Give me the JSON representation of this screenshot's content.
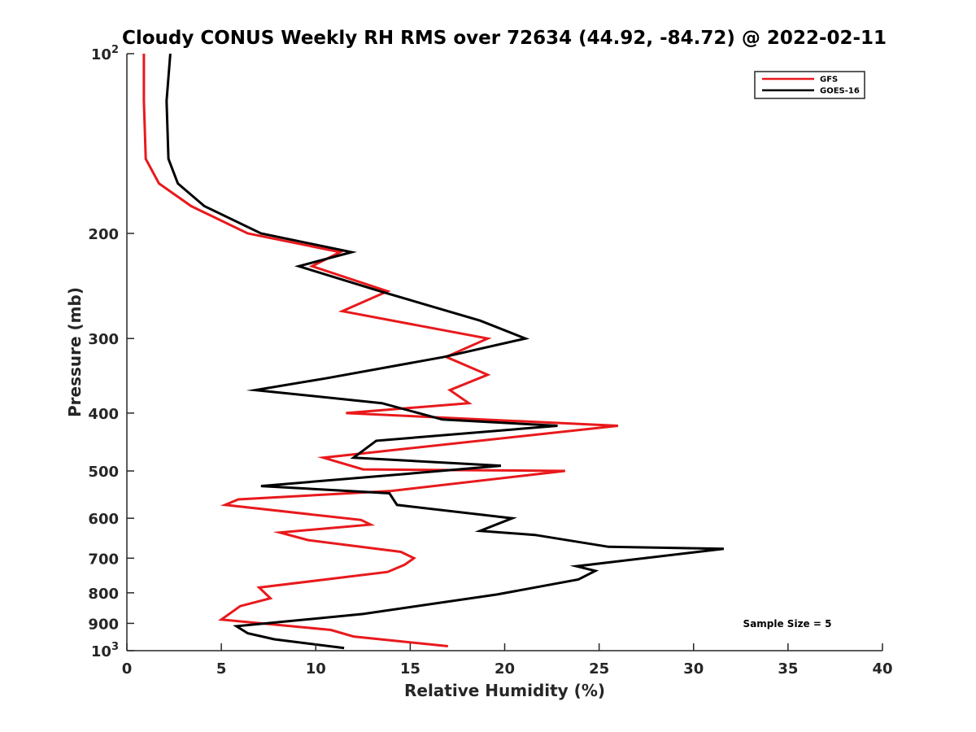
{
  "chart_data": {
    "type": "line",
    "title": "Cloudy CONUS Weekly RH RMS over 72634 (44.92, -84.72) @ 2022-02-11",
    "xlabel": "Relative Humidity (%)",
    "ylabel": "Pressure (mb)",
    "xlim": [
      0,
      40
    ],
    "ylim": [
      100,
      1000
    ],
    "y_scale": "log",
    "y_reversed": true,
    "grid": false,
    "legend_position": "top-right",
    "x_ticks": [
      "0",
      "5",
      "10",
      "15",
      "20",
      "25",
      "30",
      "35",
      "40"
    ],
    "y_ticks": [
      {
        "value": 100,
        "label": "10",
        "exp": "2"
      },
      {
        "value": 200,
        "label": "200"
      },
      {
        "value": 300,
        "label": "300"
      },
      {
        "value": 400,
        "label": "400"
      },
      {
        "value": 500,
        "label": "500"
      },
      {
        "value": 600,
        "label": "600"
      },
      {
        "value": 700,
        "label": "700"
      },
      {
        "value": 800,
        "label": "800"
      },
      {
        "value": 900,
        "label": "900"
      },
      {
        "value": 1000,
        "label": "10",
        "exp": "3"
      }
    ],
    "series": [
      {
        "name": "GFS",
        "color": "#e8191c",
        "x": [
          0.9,
          0.9,
          1.0,
          1.7,
          3.4,
          6.4,
          11.3,
          9.8,
          13.8,
          11.4,
          19.1,
          16.9,
          19.1,
          17.1,
          18.1,
          11.6,
          26.0,
          10.4,
          12.5,
          23.2,
          14.0,
          5.9,
          5.2,
          12.4,
          12.9,
          8.1,
          9.6,
          14.5,
          15.2,
          14.7,
          13.8,
          7.0,
          7.6,
          6.0,
          5.0,
          10.8,
          12.0,
          17.0
        ],
        "y": [
          100,
          120,
          150,
          165,
          180,
          200,
          215,
          227,
          250,
          270,
          300,
          322,
          345,
          366,
          385,
          400,
          420,
          475,
          497,
          500,
          540,
          558,
          570,
          604,
          615,
          634,
          653,
          683,
          700,
          718,
          738,
          784,
          817,
          842,
          887,
          923,
          947,
          983
        ]
      },
      {
        "name": "GOES-16",
        "color": "#000000",
        "x": [
          2.3,
          2.1,
          2.2,
          2.7,
          4.1,
          7.1,
          11.9,
          9.1,
          13.4,
          18.7,
          21.1,
          16.8,
          10.5,
          6.8,
          13.5,
          16.7,
          22.8,
          13.2,
          12.0,
          19.8,
          15.0,
          7.1,
          13.9,
          14.3,
          20.4,
          18.7,
          21.6,
          25.5,
          31.6,
          23.8,
          24.8,
          23.9,
          19.6,
          12.5,
          5.8,
          6.4,
          7.8,
          11.5
        ],
        "y": [
          100,
          120,
          150,
          165,
          180,
          200,
          215,
          227,
          250,
          280,
          300,
          322,
          350,
          366,
          385,
          410,
          420,
          445,
          475,
          490,
          505,
          530,
          545,
          570,
          600,
          630,
          640,
          670,
          675,
          722,
          735,
          760,
          805,
          868,
          910,
          935,
          957,
          990
        ]
      }
    ],
    "annotation": "Sample Size = 5"
  }
}
